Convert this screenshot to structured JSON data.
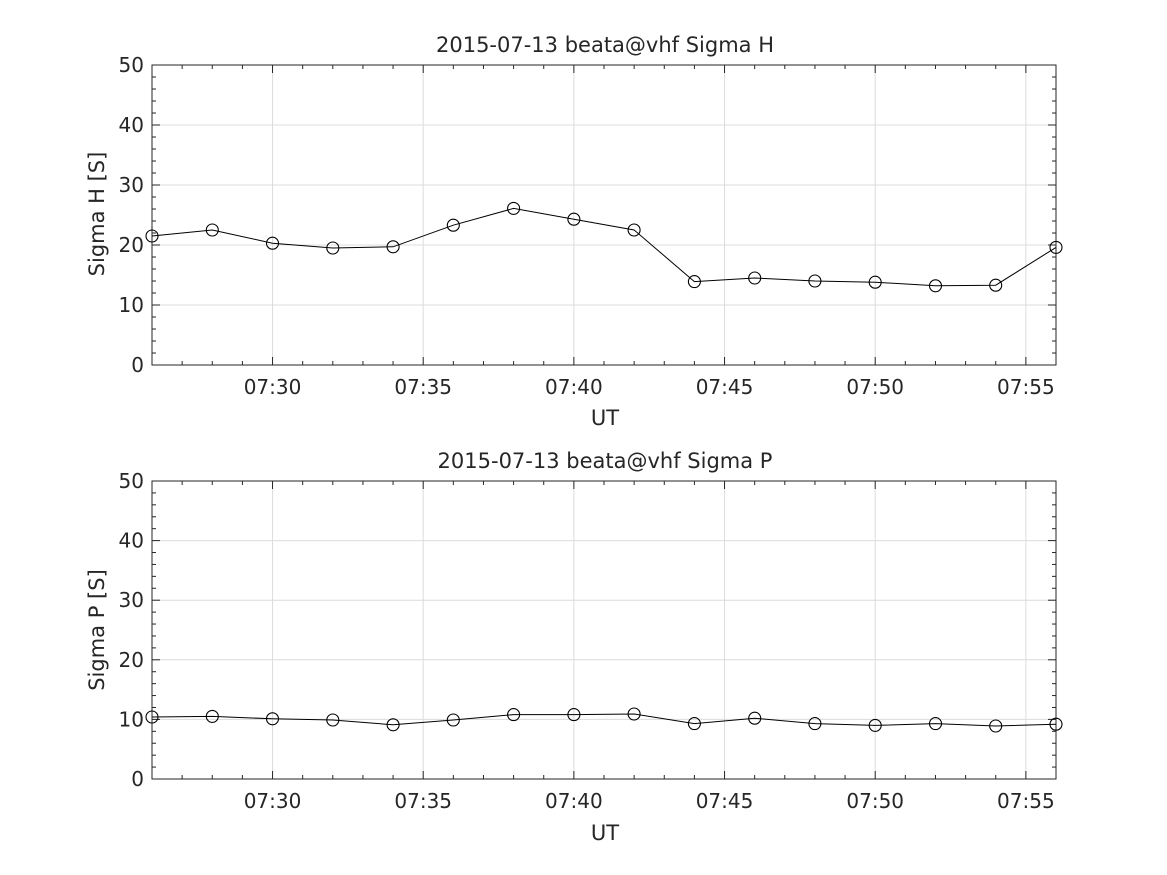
{
  "chart_data": [
    {
      "type": "line",
      "title": "2015-07-13  beata@vhf Sigma H",
      "xlabel": "UT",
      "ylabel": "Sigma H [S]",
      "xlim": [
        "07:26",
        "07:56"
      ],
      "ylim": [
        0,
        50
      ],
      "yticks": [
        "0",
        "10",
        "20",
        "30",
        "40",
        "50"
      ],
      "xticks": [
        "07:30",
        "07:35",
        "07:40",
        "07:45",
        "07:50",
        "07:55"
      ],
      "grid": true,
      "marker": "circle",
      "line_color": "#000000",
      "x": [
        "07:26",
        "07:28",
        "07:30",
        "07:32",
        "07:34",
        "07:36",
        "07:38",
        "07:40",
        "07:42",
        "07:44",
        "07:46",
        "07:48",
        "07:50",
        "07:52",
        "07:54",
        "07:56"
      ],
      "values": [
        21.5,
        22.5,
        20.3,
        19.5,
        19.7,
        23.3,
        26.1,
        24.3,
        22.5,
        13.9,
        14.5,
        14.0,
        13.8,
        13.2,
        13.3,
        19.6
      ]
    },
    {
      "type": "line",
      "title": "2015-07-13  beata@vhf Sigma P",
      "xlabel": "UT",
      "ylabel": "Sigma P [S]",
      "xlim": [
        "07:26",
        "07:56"
      ],
      "ylim": [
        0,
        50
      ],
      "yticks": [
        "0",
        "10",
        "20",
        "30",
        "40",
        "50"
      ],
      "xticks": [
        "07:30",
        "07:35",
        "07:40",
        "07:45",
        "07:50",
        "07:55"
      ],
      "grid": true,
      "marker": "circle",
      "line_color": "#000000",
      "x": [
        "07:26",
        "07:28",
        "07:30",
        "07:32",
        "07:34",
        "07:36",
        "07:38",
        "07:40",
        "07:42",
        "07:44",
        "07:46",
        "07:48",
        "07:50",
        "07:52",
        "07:54",
        "07:56"
      ],
      "values": [
        10.4,
        10.5,
        10.1,
        9.9,
        9.1,
        9.9,
        10.8,
        10.8,
        10.9,
        9.3,
        10.2,
        9.3,
        9.0,
        9.3,
        8.9,
        9.2
      ]
    }
  ]
}
